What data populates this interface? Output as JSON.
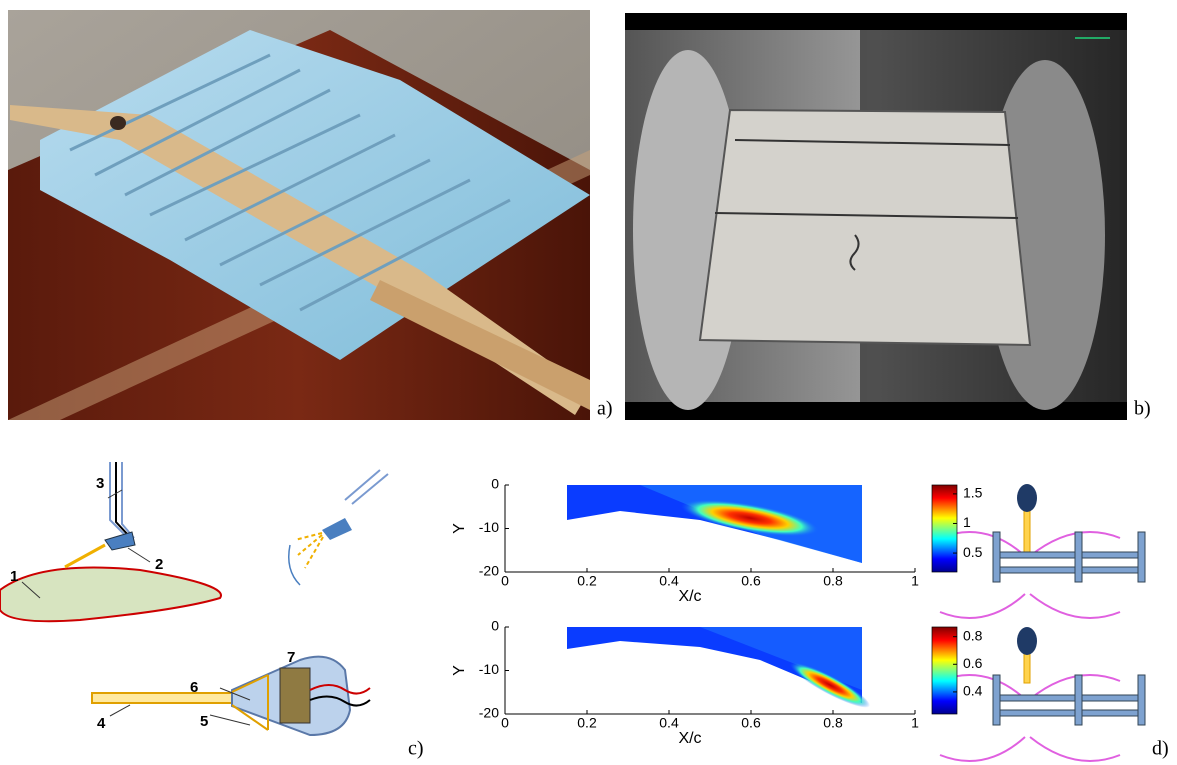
{
  "panel_labels": [
    "a)",
    "b)",
    "c)",
    "d)"
  ],
  "diagram_c": {
    "labels": [
      "1",
      "2",
      "3",
      "4",
      "5",
      "6",
      "7"
    ]
  },
  "charts": [
    {
      "type": "heatmap",
      "xlabel": "X/c",
      "ylabel": "Y",
      "xlim": [
        0,
        1
      ],
      "ylim": [
        -20,
        0
      ],
      "xticks": [
        0,
        0.2,
        0.4,
        0.6,
        0.8,
        1
      ],
      "yticks": [
        0,
        -10,
        -20
      ],
      "colorbar": {
        "lim": [
          0.18,
          1.65
        ],
        "ticks": [
          0.5,
          1,
          1.5
        ]
      }
    },
    {
      "type": "heatmap",
      "xlabel": "X/c",
      "ylabel": "Y",
      "xlim": [
        0,
        1
      ],
      "ylim": [
        -20,
        0
      ],
      "xticks": [
        0,
        0.2,
        0.4,
        0.6,
        0.8,
        1
      ],
      "yticks": [
        0,
        -10,
        -20
      ],
      "colorbar": {
        "lim": [
          0.24,
          0.87
        ],
        "ticks": [
          0.4,
          0.6,
          0.8
        ]
      }
    }
  ]
}
